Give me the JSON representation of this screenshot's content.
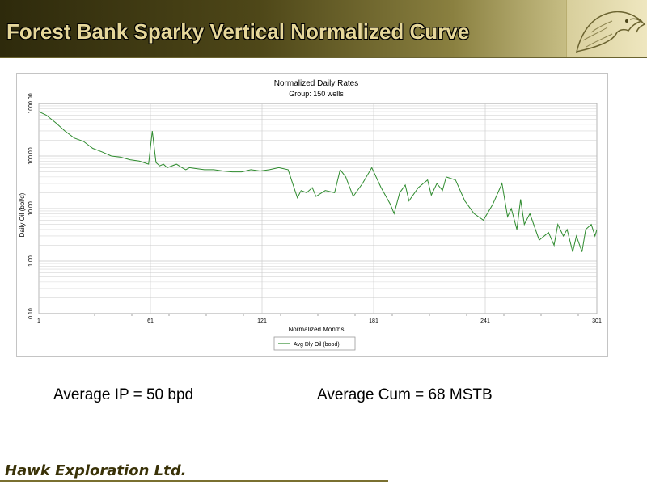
{
  "slide": {
    "title": "Forest Bank Sparky Vertical Normalized Curve",
    "average_ip": "Average IP = 50 bpd",
    "average_cum": "Average Cum = 68 MSTB",
    "company": "Hawk Exploration Ltd."
  },
  "colors": {
    "series": "#2e8b2e",
    "header_dark": "#2e2a0c",
    "title_text": "#e6d79a"
  },
  "logo_icon": "eagle-head-icon",
  "chart_data": {
    "type": "line",
    "title": "Normalized Daily Rates",
    "subtitle": "Group: 150 wells",
    "xlabel": "Normalized Months",
    "ylabel": "Daily Oil (bbl/d)",
    "yscale": "log",
    "xlim": [
      1,
      301
    ],
    "ylim": [
      0.1,
      1000
    ],
    "xticks": [
      "1",
      "61",
      "121",
      "181",
      "241",
      "301"
    ],
    "yticks": [
      "0.10",
      "1.00",
      "10.00",
      "100.00",
      "1000.00"
    ],
    "grid": true,
    "legend": "bottom-center",
    "series": [
      {
        "name": "Avg Dly Oil (bopd)",
        "x": [
          1,
          5,
          10,
          15,
          20,
          25,
          30,
          35,
          40,
          45,
          50,
          55,
          60,
          62,
          64,
          66,
          68,
          70,
          75,
          78,
          80,
          82,
          85,
          90,
          95,
          100,
          105,
          110,
          115,
          120,
          125,
          130,
          135,
          140,
          142,
          145,
          148,
          150,
          155,
          160,
          163,
          166,
          170,
          175,
          180,
          185,
          190,
          192,
          195,
          198,
          200,
          205,
          210,
          212,
          215,
          218,
          220,
          225,
          230,
          235,
          240,
          245,
          250,
          253,
          255,
          258,
          260,
          262,
          265,
          270,
          275,
          278,
          280,
          283,
          285,
          288,
          290,
          293,
          295,
          298,
          300,
          301
        ],
        "y": [
          700,
          600,
          430,
          300,
          220,
          190,
          140,
          120,
          100,
          95,
          85,
          80,
          70,
          300,
          75,
          65,
          70,
          60,
          70,
          60,
          55,
          60,
          58,
          55,
          55,
          52,
          50,
          50,
          55,
          52,
          55,
          60,
          55,
          16,
          22,
          20,
          25,
          17,
          22,
          20,
          55,
          40,
          17,
          30,
          60,
          25,
          12,
          8,
          20,
          28,
          14,
          25,
          35,
          18,
          30,
          22,
          40,
          35,
          14,
          8,
          6,
          12,
          30,
          7,
          10,
          4,
          15,
          5,
          8,
          2.5,
          3.5,
          2,
          5,
          3,
          4,
          1.5,
          3,
          1.5,
          4,
          5,
          3,
          4
        ]
      }
    ]
  }
}
